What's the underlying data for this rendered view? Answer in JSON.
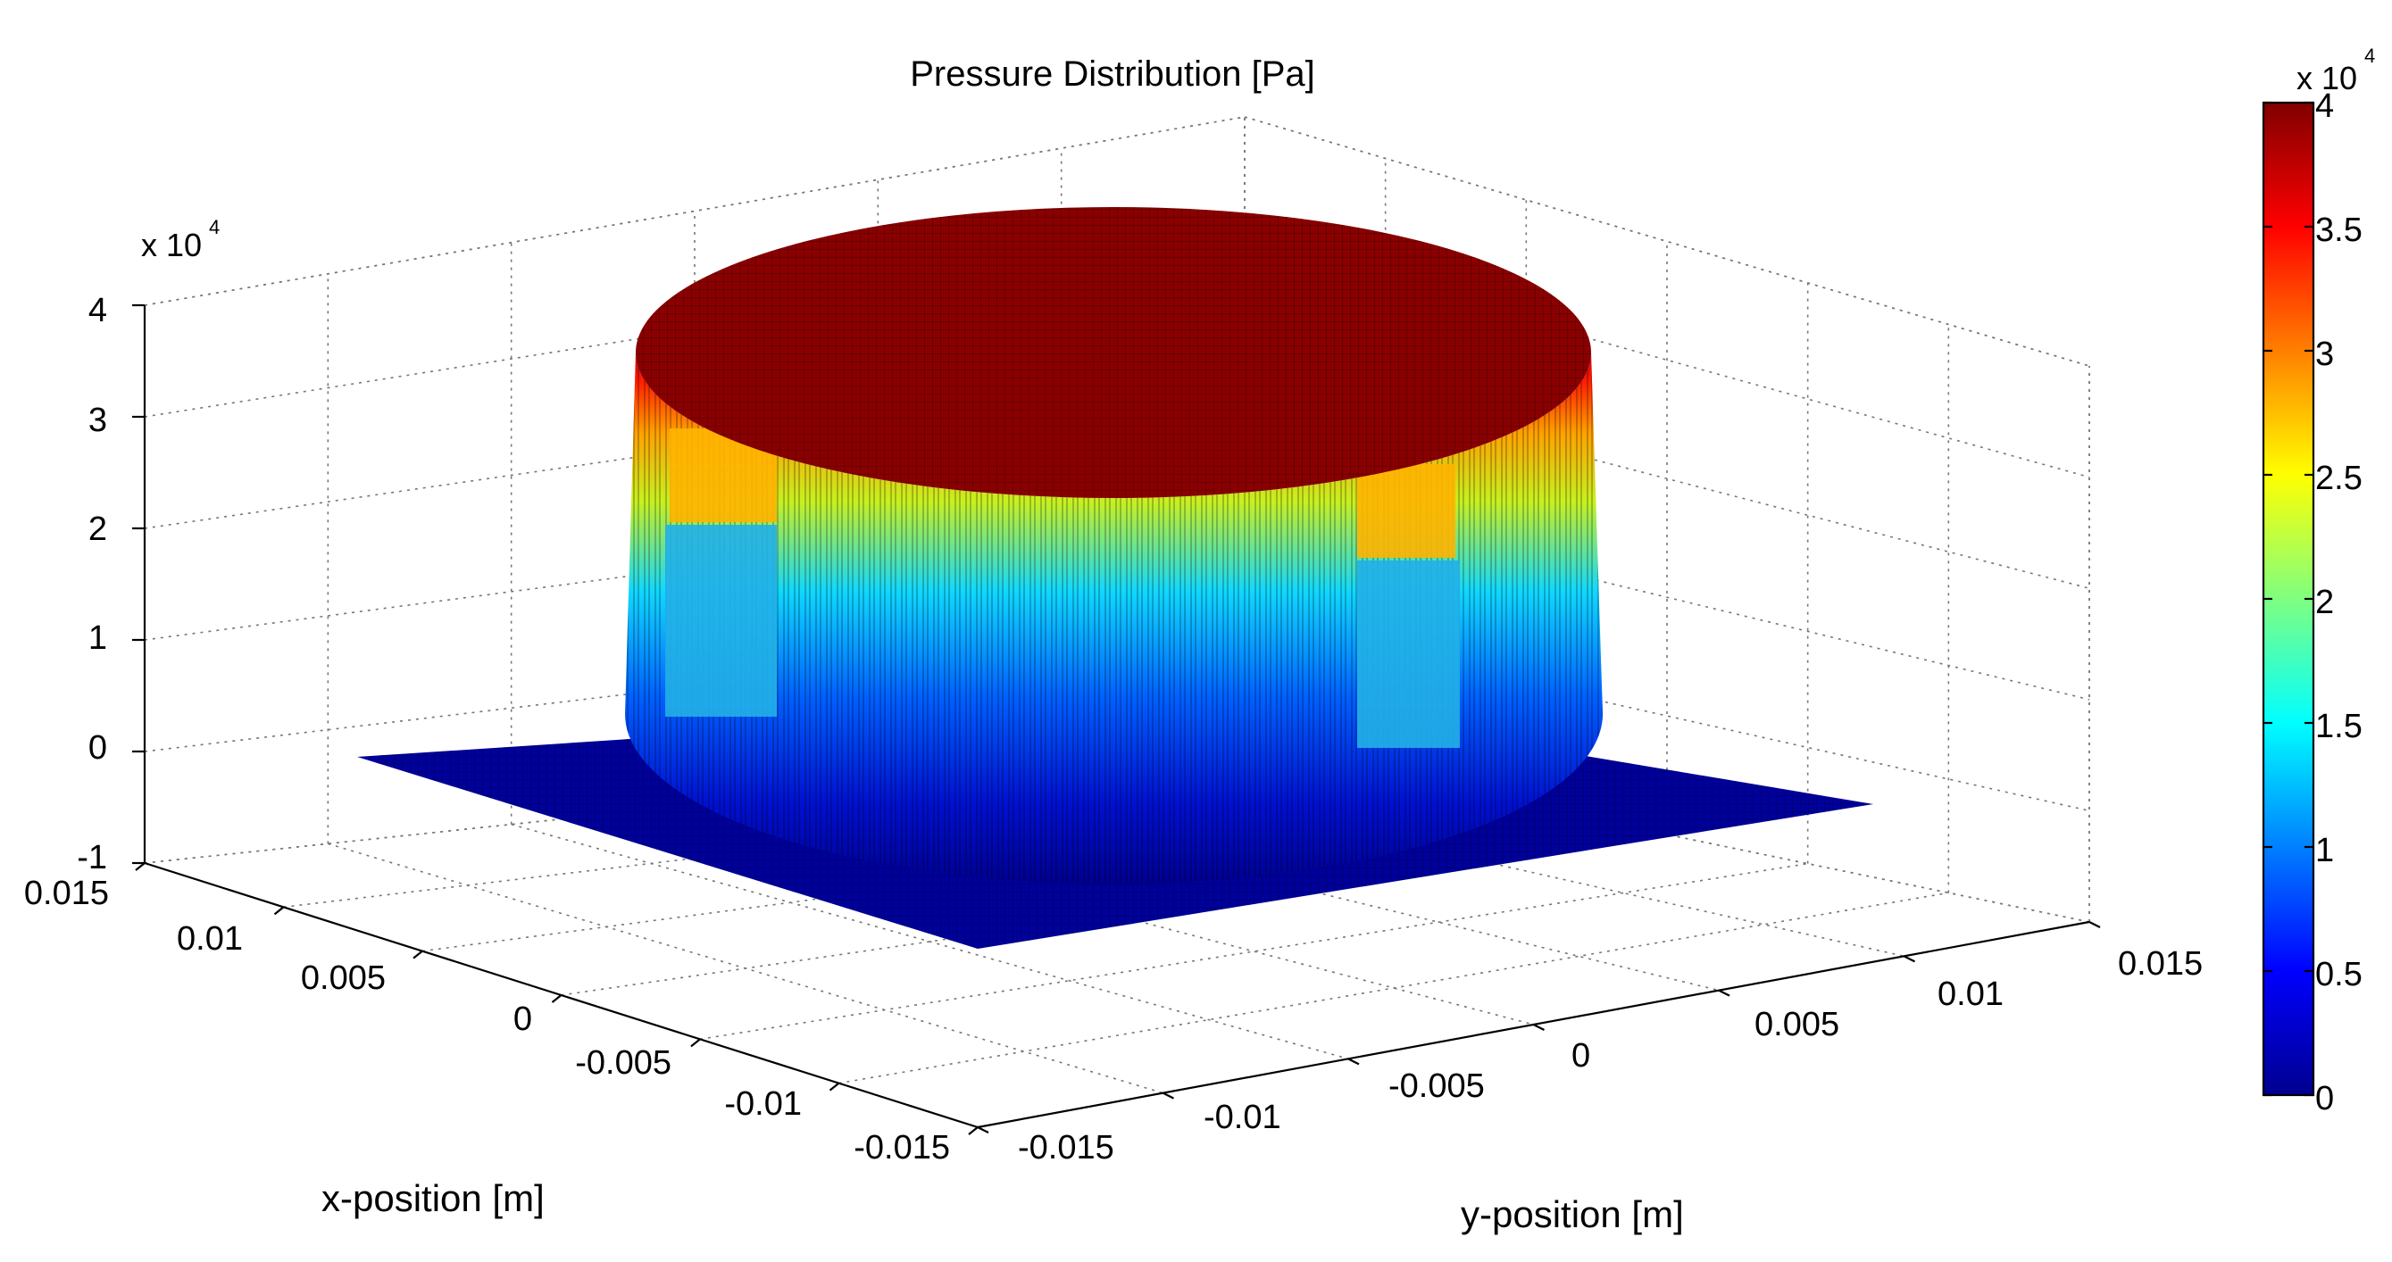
{
  "chart_data": {
    "type": "surface3d",
    "title": "Pressure Distribution [Pa]",
    "xlabel": "x-position [m]",
    "ylabel": "y-position [m]",
    "zlabel": "",
    "x_ticks": [
      "0.015",
      "0.01",
      "0.005",
      "0",
      "-0.005",
      "-0.01",
      "-0.015"
    ],
    "y_ticks": [
      "-0.015",
      "-0.01",
      "-0.005",
      "0",
      "0.005",
      "0.01",
      "0.015"
    ],
    "z_ticks": [
      "-1",
      "0",
      "1",
      "2",
      "3",
      "4"
    ],
    "z_tick_values": [
      -10000,
      0,
      10000,
      20000,
      30000,
      40000
    ],
    "z_exponent": "x 10",
    "z_exponent_power": "4",
    "xlim": [
      -0.015,
      0.015
    ],
    "ylim": [
      -0.015,
      0.015
    ],
    "zlim": [
      -10000,
      40000
    ],
    "surface": {
      "shape": "cylinder",
      "center": [
        0,
        0
      ],
      "radius": 0.0105,
      "domain_halfwidth": 0.0125,
      "peak_pressure": 40000,
      "base_pressure": 0
    },
    "colorbar": {
      "colormap": "jet",
      "ticks": [
        "0",
        "0.5",
        "1",
        "1.5",
        "2",
        "2.5",
        "3",
        "3.5",
        "4"
      ],
      "tick_values": [
        0,
        5000,
        10000,
        15000,
        20000,
        25000,
        30000,
        35000,
        40000
      ],
      "exponent": "x 10",
      "exponent_power": "4",
      "range": [
        0,
        40000
      ]
    }
  }
}
